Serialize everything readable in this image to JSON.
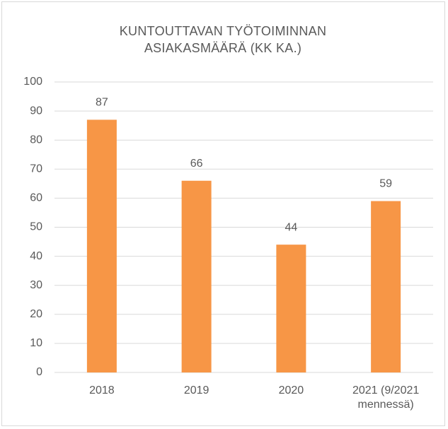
{
  "chart_data": {
    "type": "bar",
    "title": "KUNTOUTTAVAN TYÖTOIMINNAN ASIAKASMÄÄRÄ (KK KA.)",
    "categories": [
      "2018",
      "2019",
      "2020",
      "2021 (9/2021 mennessä)"
    ],
    "values": [
      87,
      66,
      44,
      59
    ],
    "color": "#f79646",
    "ylim": [
      0,
      100
    ],
    "yticks": [
      0,
      10,
      20,
      30,
      40,
      50,
      60,
      70,
      80,
      90,
      100
    ],
    "grid": true
  }
}
